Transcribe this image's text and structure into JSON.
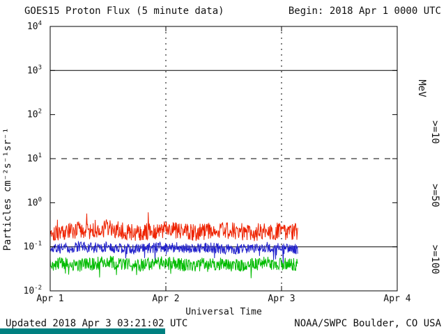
{
  "header": {
    "title": "GOES15 Proton Flux (5 minute data)",
    "begin": "Begin: 2018 Apr 1 0000 UTC"
  },
  "footer": {
    "updated": "Updated 2018 Apr  3 03:21:02 UTC",
    "credit": "NOAA/SWPC Boulder, CO USA"
  },
  "colors": {
    "footer_bar": "#008080",
    "axis": "#000000"
  },
  "chart_data": {
    "type": "line",
    "title": "GOES15 Proton Flux (5 minute data)",
    "xlabel": "Universal Time",
    "ylabel": "Particles cm⁻²s⁻¹sr⁻¹",
    "right_axis_unit": "MeV",
    "x_range_days": [
      0,
      3
    ],
    "data_end_day": 2.1396,
    "y_log_range": [
      -2,
      4
    ],
    "y_tick_exponents": [
      4,
      3,
      2,
      1,
      0,
      -1,
      -2
    ],
    "x_ticks": [
      {
        "label": "Apr 1",
        "day": 0
      },
      {
        "label": "Apr 2",
        "day": 1
      },
      {
        "label": "Apr 3",
        "day": 2
      },
      {
        "label": "Apr 4",
        "day": 3
      }
    ],
    "hlines": [
      {
        "log10": 3,
        "style": "solid"
      },
      {
        "log10": 1,
        "style": "dashed"
      },
      {
        "log10": -1,
        "style": "solid"
      }
    ],
    "vlines_days": [
      1,
      2
    ],
    "grid": "partial",
    "legend_position": "right-rotated",
    "samples_interval_days": 0.125,
    "series": [
      {
        "id": "ge10",
        "label": ">=10",
        "name": ">=10 MeV",
        "color": "#ee2200",
        "median_flux": 0.22,
        "jitter_decades": 0.2,
        "spike_prob": 0.015,
        "spike_decades": 0.35,
        "spike_direction": 1,
        "seed": 101,
        "samples": [
          0.22,
          0.21,
          0.24,
          0.22,
          0.27,
          0.23,
          0.21,
          0.22,
          0.25,
          0.22,
          0.21,
          0.23,
          0.24,
          0.22,
          0.21,
          0.23,
          0.22,
          0.22
        ]
      },
      {
        "id": "ge50",
        "label": ">=50",
        "name": ">=50 MeV",
        "color": "#2222cc",
        "median_flux": 0.095,
        "jitter_decades": 0.12,
        "spike_prob": 0.02,
        "spike_decades": 0.35,
        "spike_direction": -1,
        "seed": 202,
        "samples": [
          0.095,
          0.09,
          0.1,
          0.095,
          0.1,
          0.09,
          0.09,
          0.095,
          0.1,
          0.095,
          0.09,
          0.095,
          0.09,
          0.09,
          0.095,
          0.1,
          0.09,
          0.09
        ]
      },
      {
        "id": "ge100",
        "label": ">=100",
        "name": ">=100 MeV",
        "color": "#00bb00",
        "median_flux": 0.04,
        "jitter_decades": 0.15,
        "spike_prob": 0.02,
        "spike_decades": 0.3,
        "spike_direction": -1,
        "seed": 303,
        "samples": [
          0.04,
          0.042,
          0.038,
          0.041,
          0.046,
          0.04,
          0.037,
          0.042,
          0.044,
          0.04,
          0.038,
          0.042,
          0.04,
          0.037,
          0.04,
          0.043,
          0.04,
          0.04
        ]
      }
    ]
  }
}
